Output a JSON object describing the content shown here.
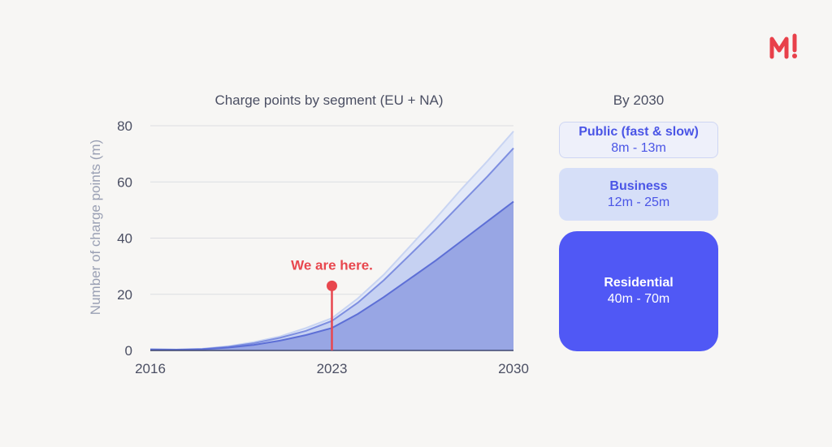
{
  "brand": {
    "logo_text": "M!",
    "accent": "#e8404a"
  },
  "chart_data": {
    "type": "area",
    "title": "Charge points by segment (EU + NA)",
    "xlabel": "",
    "ylabel": "Number of charge points (m)",
    "x": [
      2016,
      2017,
      2018,
      2019,
      2020,
      2021,
      2022,
      2023,
      2024,
      2025,
      2026,
      2027,
      2028,
      2029,
      2030
    ],
    "xticks": [
      "2016",
      "2023",
      "2030"
    ],
    "yticks": [
      "0",
      "20",
      "40",
      "60",
      "80"
    ],
    "ylim": [
      0,
      80
    ],
    "xlim": [
      2016,
      2030
    ],
    "grid": true,
    "series": [
      {
        "values": [
          0.3,
          0.2,
          0.4,
          1.0,
          2.0,
          3.5,
          5.5,
          8.0,
          13.0,
          19.0,
          25.5,
          32.0,
          39.0,
          46.0,
          53.0
        ],
        "color": "#5d6fd6"
      },
      {
        "values": [
          0.4,
          0.3,
          0.5,
          1.3,
          2.6,
          4.5,
          7.0,
          10.5,
          17.0,
          25.0,
          34.0,
          43.0,
          52.5,
          62.0,
          72.0
        ],
        "color": "#7d8ee0"
      },
      {
        "values": [
          0.5,
          0.35,
          0.6,
          1.5,
          3.0,
          5.0,
          8.0,
          11.5,
          18.5,
          27.0,
          37.0,
          47.0,
          57.5,
          67.5,
          78.0
        ],
        "color": "#c8d4f2"
      }
    ],
    "annotation": {
      "text": "We are here.",
      "x": 2023,
      "y": 23,
      "color": "#e8474e"
    }
  },
  "segments_panel": {
    "title": "By 2030",
    "items": [
      {
        "name": "Public (fast & slow)",
        "range": "8m - 13m"
      },
      {
        "name": "Business",
        "range": "12m - 25m"
      },
      {
        "name": "Residential",
        "range": "40m - 70m"
      }
    ]
  }
}
